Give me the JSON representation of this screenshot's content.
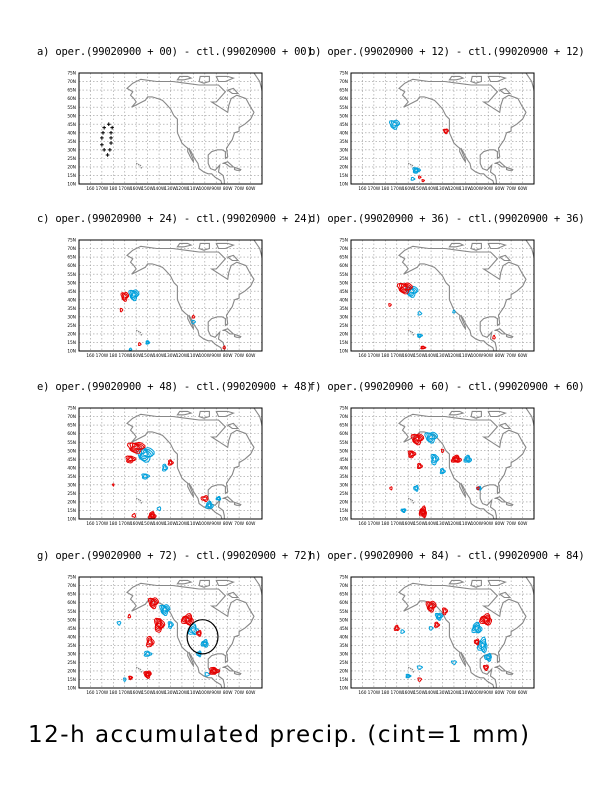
{
  "caption": "12-h accumulated precip. (cint=1 mm)",
  "chart_data": {
    "type": "contour-map",
    "lon_ticks": [
      "160",
      "170W",
      "180",
      "170W",
      "160W",
      "150W",
      "140W",
      "130W",
      "120W",
      "110W",
      "100W",
      "90W",
      "80W",
      "70W",
      "60W"
    ],
    "lat_ticks": [
      "75N",
      "70N",
      "65N",
      "60N",
      "55N",
      "50N",
      "45N",
      "40N",
      "35N",
      "30N",
      "25N",
      "20N",
      "15N",
      "10N"
    ],
    "colors": {
      "positive": "#e60000",
      "negative": "#00a0dc",
      "coast": "#888888",
      "grid": "#999999",
      "markers": "#000000"
    },
    "panels": [
      {
        "id": "a",
        "title": "a) oper.(99020900 + 00) - ctl.(99020900 + 00)",
        "lead_h": 0,
        "markers": [
          [
            176,
            45
          ],
          [
            179,
            43
          ],
          [
            178,
            40
          ],
          [
            178,
            37
          ],
          [
            178,
            34
          ],
          [
            177,
            30
          ],
          [
            175,
            27
          ],
          [
            172,
            30
          ],
          [
            170,
            33
          ],
          [
            170,
            37
          ],
          [
            171,
            40
          ],
          [
            172,
            43
          ]
        ],
        "red": [],
        "blue": []
      },
      {
        "id": "b",
        "title": "b) oper.(99020900 + 12) - ctl.(99020900 + 12)",
        "lead_h": 12,
        "red": [
          [
            -127,
            41,
            2,
            1.3,
            2
          ],
          [
            -147,
            12,
            1,
            0.6,
            1
          ],
          [
            -150,
            14,
            1,
            0.6,
            1
          ]
        ],
        "blue": [
          [
            -172,
            45,
            4,
            2.5,
            3
          ],
          [
            -153,
            18,
            3,
            1.6,
            3
          ],
          [
            -156,
            13,
            1.5,
            0.8,
            1
          ]
        ]
      },
      {
        "id": "c",
        "title": "c) oper.(99020900 + 24) - ctl.(99020900 + 24)",
        "lead_h": 24,
        "red": [
          [
            -170,
            42,
            3,
            2.5,
            3
          ],
          [
            -173,
            34,
            1,
            1,
            1
          ],
          [
            -157,
            14,
            1,
            0.8,
            1
          ],
          [
            -110,
            30,
            1,
            0.8,
            1
          ],
          [
            -83,
            12,
            1,
            0.8,
            1
          ]
        ],
        "blue": [
          [
            -162,
            43,
            4,
            3,
            4
          ],
          [
            -110,
            27,
            1.5,
            1,
            1
          ],
          [
            -150,
            15,
            1.5,
            1,
            2
          ],
          [
            -165,
            11,
            1,
            0.6,
            1
          ]
        ]
      },
      {
        "id": "d",
        "title": "d) oper.(99020900 + 36) - ctl.(99020900 + 36)",
        "lead_h": 36,
        "red": [
          [
            -163,
            47,
            6,
            3,
            5
          ],
          [
            -176,
            37,
            1,
            0.8,
            1
          ],
          [
            -147,
            12,
            2,
            0.8,
            2
          ],
          [
            -85,
            18,
            1,
            1,
            1
          ]
        ],
        "blue": [
          [
            -157,
            45,
            5,
            3,
            4
          ],
          [
            -150,
            19,
            2,
            1,
            2
          ],
          [
            -150,
            32,
            1.5,
            1,
            1
          ],
          [
            -120,
            33,
            1,
            0.8,
            1
          ]
        ]
      },
      {
        "id": "e",
        "title": "e) oper.(99020900 + 48) - ctl.(99020900 + 48)",
        "lead_h": 48,
        "red": [
          [
            -160,
            52,
            7,
            3,
            5
          ],
          [
            -165,
            45,
            4,
            2,
            3
          ],
          [
            -130,
            43,
            2,
            1.5,
            2
          ],
          [
            -146,
            12,
            3,
            2,
            4
          ],
          [
            -162,
            12,
            1.5,
            1,
            1
          ],
          [
            -100,
            22,
            3,
            1.5,
            2
          ],
          [
            -180,
            30,
            0.6,
            0.6,
            1
          ]
        ],
        "blue": [
          [
            -152,
            48,
            7,
            4,
            5
          ],
          [
            -152,
            35,
            3,
            1.5,
            2
          ],
          [
            -135,
            40,
            2,
            2,
            2
          ],
          [
            -96,
            18,
            3,
            2,
            3
          ],
          [
            -88,
            22,
            2,
            1,
            2
          ],
          [
            -140,
            16,
            1.5,
            1,
            1
          ]
        ]
      },
      {
        "id": "f",
        "title": "f) oper.(99020900 + 60) - ctl.(99020900 + 60)",
        "lead_h": 60,
        "red": [
          [
            -152,
            57,
            5,
            3,
            5
          ],
          [
            -157,
            48,
            3,
            2,
            3
          ],
          [
            -150,
            41,
            2,
            1.5,
            2
          ],
          [
            -118,
            45,
            4,
            2,
            4
          ],
          [
            -147,
            14,
            3,
            3,
            5
          ],
          [
            -175,
            28,
            1,
            0.8,
            1
          ],
          [
            -99,
            28,
            1,
            0.8,
            1
          ],
          [
            -130,
            50,
            1,
            1,
            1
          ]
        ],
        "blue": [
          [
            -140,
            58,
            5,
            3,
            4
          ],
          [
            -137,
            45,
            3,
            3,
            3
          ],
          [
            -130,
            38,
            2,
            1.5,
            2
          ],
          [
            -108,
            45,
            3,
            2,
            3
          ],
          [
            -98,
            28,
            2,
            1,
            2
          ],
          [
            -153,
            28,
            2,
            1.5,
            2
          ],
          [
            -164,
            15,
            2,
            1,
            2
          ]
        ]
      },
      {
        "id": "g",
        "title": "g) oper.(99020900 + 72) - ctl.(99020900 + 72)",
        "lead_h": 72,
        "red": [
          [
            -145,
            60,
            4,
            3,
            4
          ],
          [
            -140,
            47,
            4,
            4,
            5
          ],
          [
            -148,
            37,
            3,
            3,
            3
          ],
          [
            -166,
            52,
            1,
            1,
            1
          ],
          [
            -115,
            50,
            5,
            3,
            5
          ],
          [
            -105,
            42,
            2,
            1.5,
            2
          ],
          [
            -150,
            18,
            3,
            2,
            4
          ],
          [
            -165,
            16,
            1.5,
            1,
            2
          ],
          [
            -92,
            20,
            4,
            2,
            4
          ]
        ],
        "blue": [
          [
            -135,
            56,
            4,
            3,
            4
          ],
          [
            -130,
            47,
            2,
            2,
            2
          ],
          [
            -150,
            30,
            3,
            1.5,
            2
          ],
          [
            -110,
            44,
            4,
            3,
            3
          ],
          [
            -100,
            36,
            3,
            2,
            3
          ],
          [
            -105,
            30,
            2,
            1.5,
            2
          ],
          [
            -175,
            48,
            1.5,
            1,
            1
          ],
          [
            -170,
            15,
            1,
            1,
            1
          ],
          [
            -98,
            18,
            2,
            1,
            1
          ]
        ],
        "circle": [
          -102,
          40,
          10
        ]
      },
      {
        "id": "h",
        "title": "h) oper.(99020900 + 84) - ctl.(99020900 + 84)",
        "lead_h": 84,
        "red": [
          [
            -140,
            58,
            4,
            3,
            4
          ],
          [
            -128,
            55,
            2,
            2,
            2
          ],
          [
            -135,
            47,
            2,
            1.5,
            2
          ],
          [
            -170,
            45,
            2,
            1.5,
            2
          ],
          [
            -92,
            50,
            5,
            3,
            5
          ],
          [
            -100,
            37,
            2,
            1.5,
            2
          ],
          [
            -92,
            22,
            2,
            1.5,
            2
          ],
          [
            -150,
            15,
            1.5,
            1,
            1
          ]
        ],
        "blue": [
          [
            -133,
            52,
            3,
            2,
            3
          ],
          [
            -140,
            45,
            1.5,
            1,
            1
          ],
          [
            -165,
            43,
            1.5,
            1,
            1
          ],
          [
            -100,
            45,
            4,
            3,
            4
          ],
          [
            -95,
            35,
            4,
            4,
            4
          ],
          [
            -90,
            28,
            3,
            2,
            3
          ],
          [
            -120,
            25,
            2,
            1,
            1
          ],
          [
            -150,
            22,
            2,
            1,
            1
          ],
          [
            -160,
            17,
            2,
            1,
            2
          ]
        ]
      }
    ]
  }
}
